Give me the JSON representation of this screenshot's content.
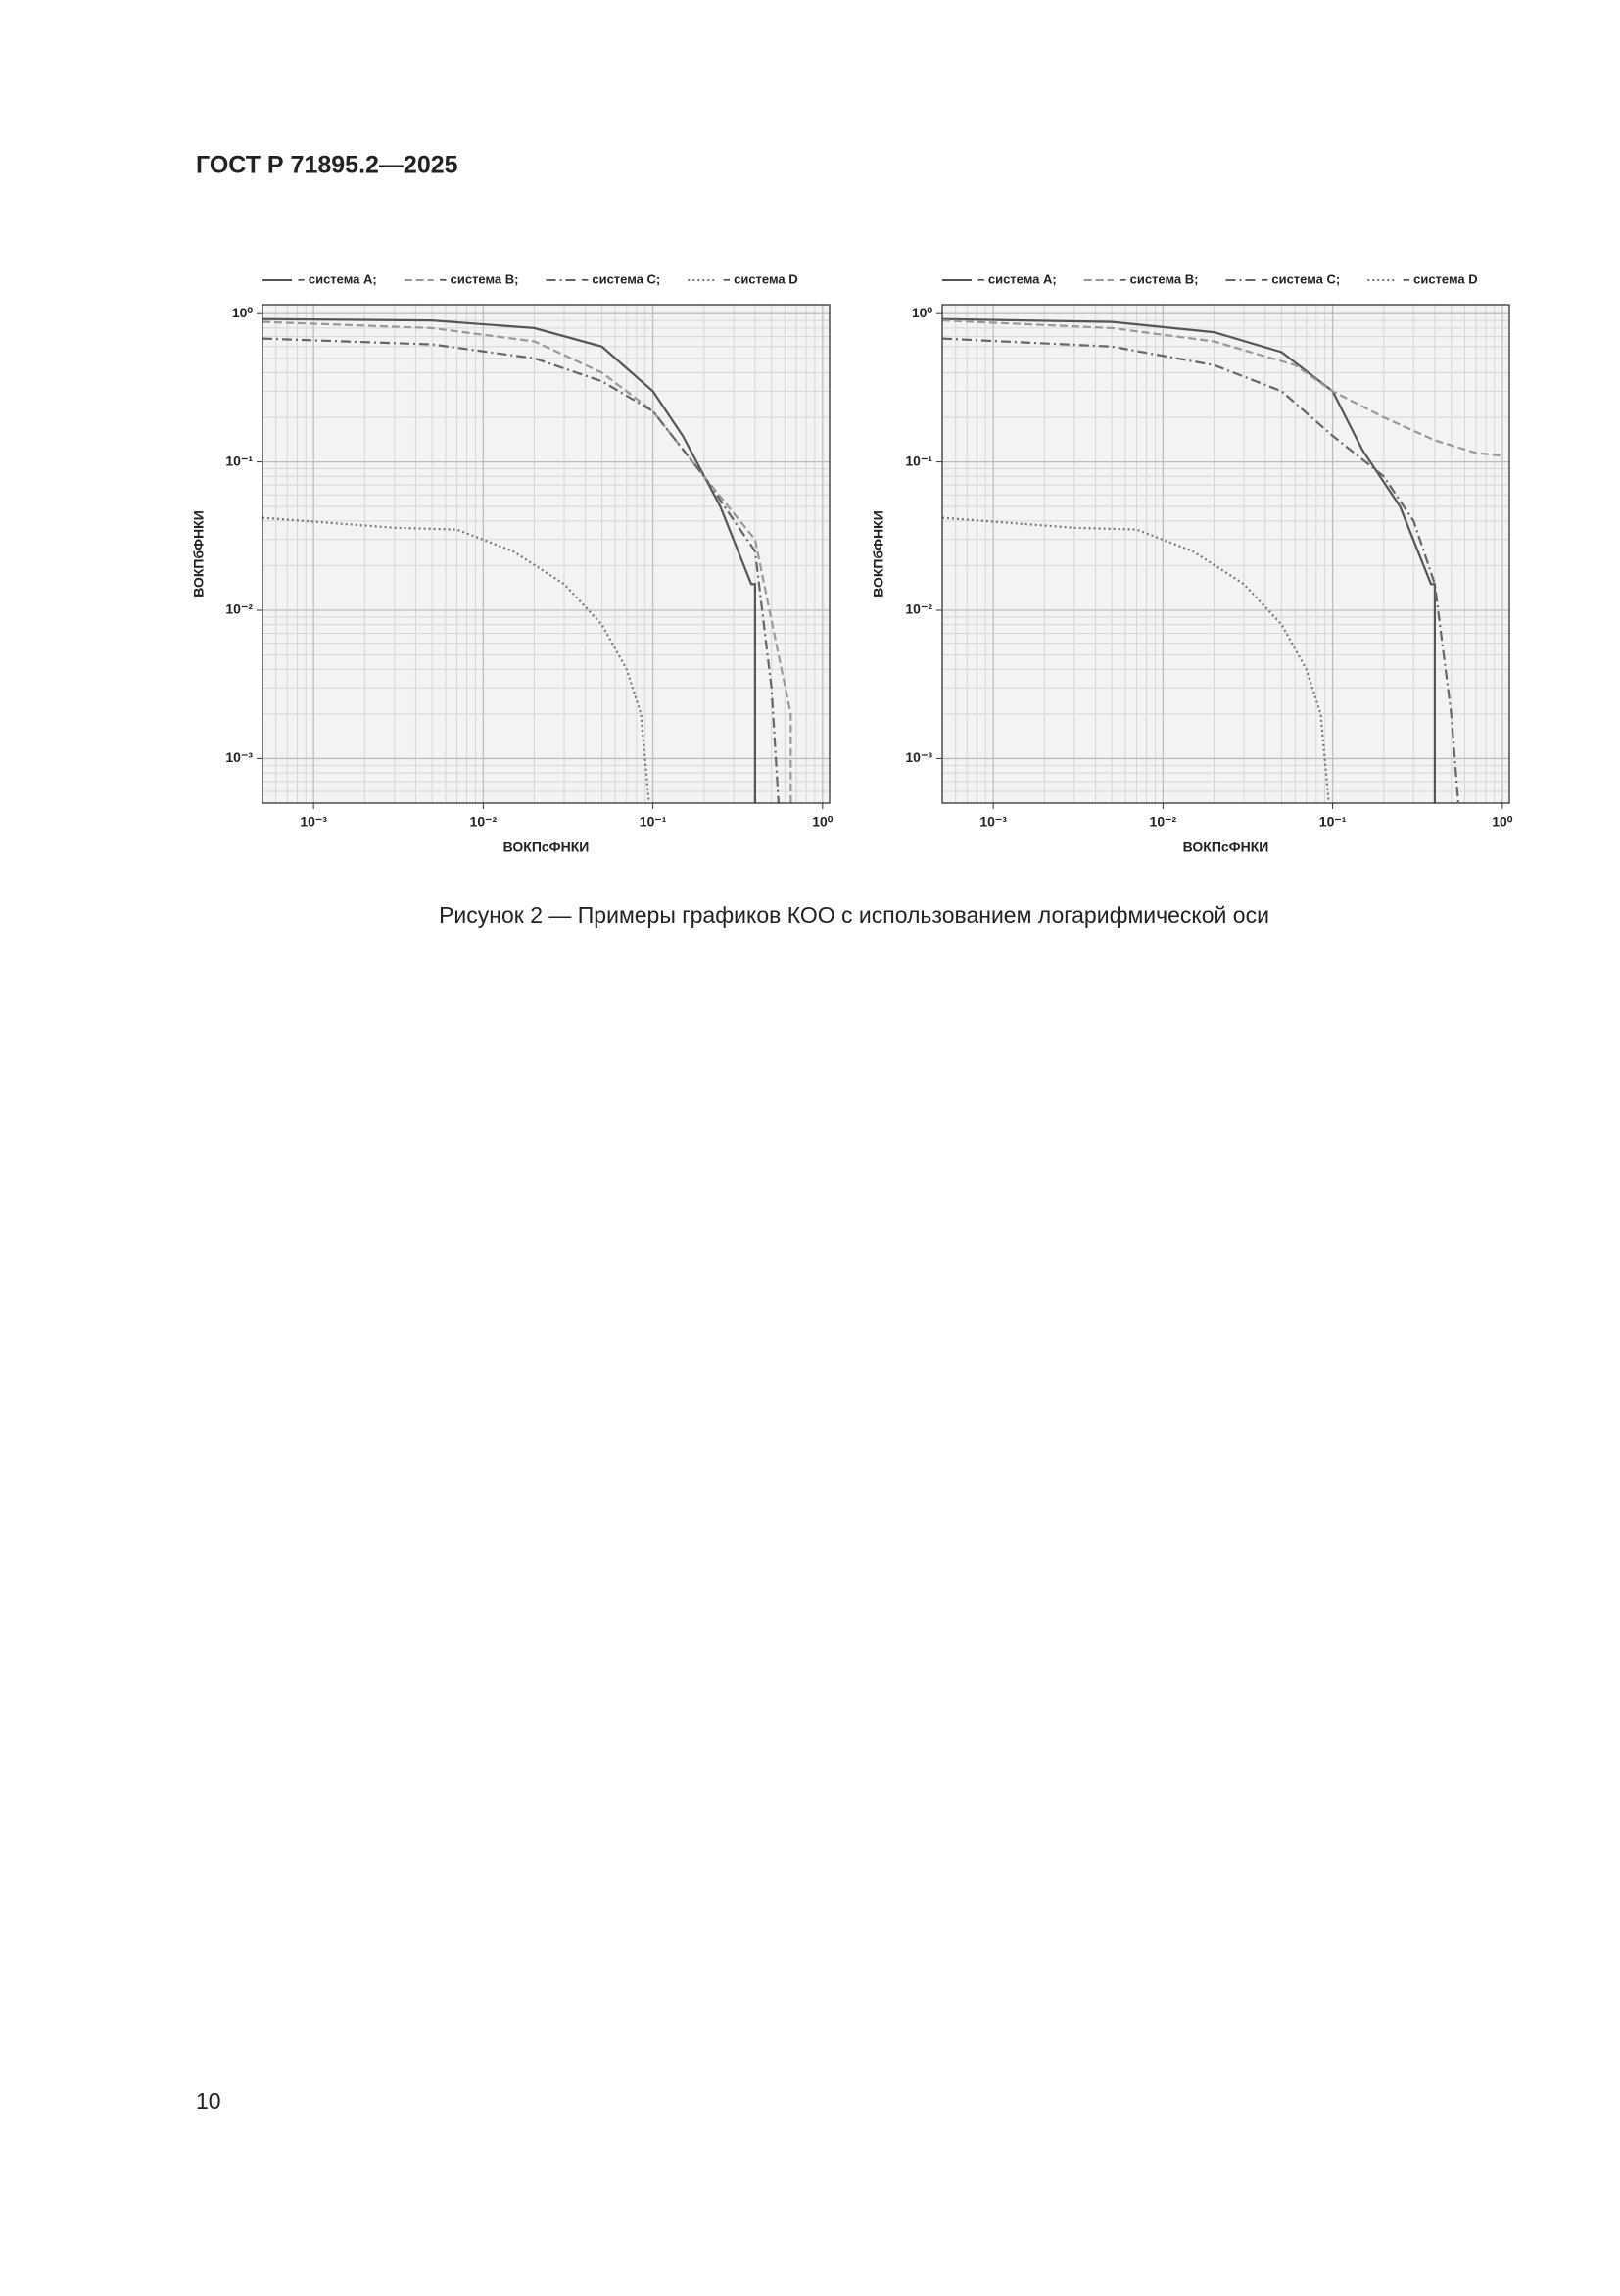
{
  "header": {
    "title": "ГОСТ Р 71895.2—2025"
  },
  "chart_data": [
    {
      "type": "line",
      "xscale": "log",
      "yscale": "log",
      "grid": true,
      "minor_grid": true,
      "legend": "top",
      "xlabel": "ВОКПсФНКИ",
      "ylabel": "ВОКПбФНКИ",
      "xlim": [
        0.0005,
        1.1
      ],
      "ylim": [
        0.0005,
        1.15
      ],
      "xticks": [
        {
          "value": 0.001,
          "label": "10⁻³"
        },
        {
          "value": 0.01,
          "label": "10⁻²"
        },
        {
          "value": 0.1,
          "label": "10⁻¹"
        },
        {
          "value": 1,
          "label": "10⁰"
        }
      ],
      "yticks": [
        {
          "value": 0.001,
          "label": "10⁻³"
        },
        {
          "value": 0.01,
          "label": "10⁻²"
        },
        {
          "value": 0.1,
          "label": "10⁻¹"
        },
        {
          "value": 1,
          "label": "10⁰"
        }
      ],
      "series": [
        {
          "name": "– система А;",
          "color": "#555555",
          "linestyle": "solid",
          "x": [
            0.0005,
            0.005,
            0.02,
            0.05,
            0.1,
            0.15,
            0.25,
            0.38,
            0.4,
            0.4
          ],
          "values": [
            0.92,
            0.9,
            0.8,
            0.6,
            0.3,
            0.15,
            0.05,
            0.015,
            0.015,
            0.0005
          ]
        },
        {
          "name": "– система В;",
          "color": "#999999",
          "linestyle": "dashed",
          "x": [
            0.0005,
            0.005,
            0.02,
            0.05,
            0.1,
            0.2,
            0.4,
            0.55,
            0.65,
            0.65
          ],
          "values": [
            0.88,
            0.8,
            0.65,
            0.4,
            0.22,
            0.08,
            0.03,
            0.005,
            0.002,
            0.0005
          ]
        },
        {
          "name": "– система С;",
          "color": "#666666",
          "linestyle": "dashdot",
          "x": [
            0.0005,
            0.005,
            0.02,
            0.05,
            0.1,
            0.2,
            0.4,
            0.5,
            0.55
          ],
          "values": [
            0.68,
            0.62,
            0.5,
            0.35,
            0.22,
            0.08,
            0.025,
            0.003,
            0.0005
          ]
        },
        {
          "name": "– система D",
          "color": "#777777",
          "linestyle": "dotted",
          "x": [
            0.0005,
            0.003,
            0.007,
            0.015,
            0.03,
            0.05,
            0.07,
            0.085,
            0.095
          ],
          "values": [
            0.042,
            0.036,
            0.035,
            0.025,
            0.015,
            0.008,
            0.004,
            0.002,
            0.0005
          ]
        }
      ]
    },
    {
      "type": "line",
      "xscale": "log",
      "yscale": "log",
      "grid": true,
      "minor_grid": true,
      "legend": "top",
      "xlabel": "ВОКПсФНКИ",
      "ylabel": "ВОКПбФНКИ",
      "xlim": [
        0.0005,
        1.1
      ],
      "ylim": [
        0.0005,
        1.15
      ],
      "xticks": [
        {
          "value": 0.001,
          "label": "10⁻³"
        },
        {
          "value": 0.01,
          "label": "10⁻²"
        },
        {
          "value": 0.1,
          "label": "10⁻¹"
        },
        {
          "value": 1,
          "label": "10⁰"
        }
      ],
      "yticks": [
        {
          "value": 0.001,
          "label": "10⁻³"
        },
        {
          "value": 0.01,
          "label": "10⁻²"
        },
        {
          "value": 0.1,
          "label": "10⁻¹"
        },
        {
          "value": 1,
          "label": "10⁰"
        }
      ],
      "series": [
        {
          "name": "– система А;",
          "color": "#555555",
          "linestyle": "solid",
          "x": [
            0.0005,
            0.005,
            0.02,
            0.05,
            0.1,
            0.15,
            0.25,
            0.38,
            0.4,
            0.4
          ],
          "values": [
            0.92,
            0.88,
            0.75,
            0.55,
            0.3,
            0.12,
            0.05,
            0.015,
            0.015,
            0.0005
          ]
        },
        {
          "name": "– система В;",
          "color": "#999999",
          "linestyle": "dashed",
          "x": [
            0.0005,
            0.005,
            0.02,
            0.06,
            0.1,
            0.2,
            0.4,
            0.7,
            1.0
          ],
          "values": [
            0.9,
            0.8,
            0.65,
            0.45,
            0.3,
            0.2,
            0.14,
            0.115,
            0.11
          ]
        },
        {
          "name": "– система С;",
          "color": "#666666",
          "linestyle": "dashdot",
          "x": [
            0.0005,
            0.005,
            0.02,
            0.05,
            0.1,
            0.2,
            0.3,
            0.4,
            0.5,
            0.55
          ],
          "values": [
            0.68,
            0.6,
            0.45,
            0.3,
            0.15,
            0.08,
            0.04,
            0.015,
            0.002,
            0.0005
          ]
        },
        {
          "name": "– система D",
          "color": "#777777",
          "linestyle": "dotted",
          "x": [
            0.0005,
            0.003,
            0.007,
            0.015,
            0.03,
            0.05,
            0.07,
            0.085,
            0.095
          ],
          "values": [
            0.042,
            0.036,
            0.035,
            0.025,
            0.015,
            0.008,
            0.004,
            0.002,
            0.0005
          ]
        }
      ]
    }
  ],
  "caption": "Рисунок 2 — Примеры графиков КОО с использованием логарифмической оси",
  "page_number": "10"
}
